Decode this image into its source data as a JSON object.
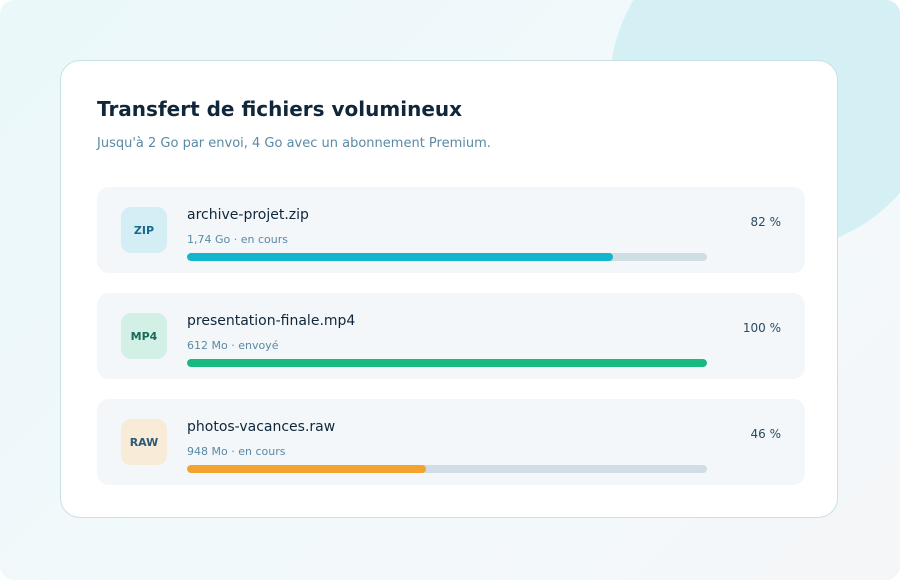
{
  "header": {
    "title": "Transfert de fichiers volumineux",
    "subtitle": "Jusqu'à 2 Go par envoi, 4 Go avec un abonnement Premium."
  },
  "files": [
    {
      "badge": "ZIP",
      "name": "archive-projet.zip",
      "meta": "1,74 Go · en cours",
      "progress": 82,
      "progress_label": "82 %",
      "color": "#12b5cc"
    },
    {
      "badge": "MP4",
      "name": "presentation-finale.mp4",
      "meta": "612 Mo · envoyé",
      "progress": 100,
      "progress_label": "100 %",
      "color": "#16b97f"
    },
    {
      "badge": "RAW",
      "name": "photos-vacances.raw",
      "meta": "948 Mo · en cours",
      "progress": 46,
      "progress_label": "46 %",
      "color": "#f2a42f"
    }
  ]
}
